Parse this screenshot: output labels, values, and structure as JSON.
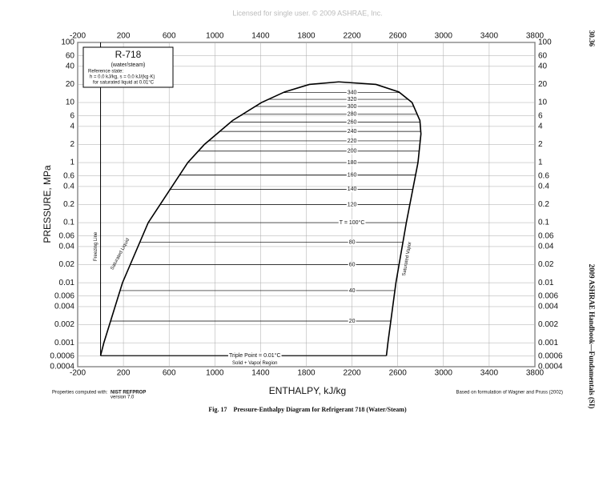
{
  "license": "Licensed for single user. © 2009 ASHRAE, Inc.",
  "page_number": "30.36",
  "running_head": "2009 ASHRAE Handbook—Fundamentals (SI)",
  "caption": "Fig. 17    Pressure-Enthalpy Diagram for Refrigerant 718 (Water/Steam)",
  "chart_data": {
    "type": "line",
    "refrigerant": "R-718",
    "subtitle": "(water/steam)",
    "reference": [
      "Reference state:",
      "h = 0.0 kJ/kg,   s = 0.0 kJ/(kg·K)",
      "for saturated liquid at 0.01°C"
    ],
    "x_label": "ENTHALPY, kJ/kg",
    "y_label": "PRESSURE, MPa",
    "log_y": true,
    "grid": true,
    "xlim": [
      -200,
      3800
    ],
    "ylim": [
      0.0004,
      100
    ],
    "xticks": [
      -200,
      200,
      600,
      1000,
      1400,
      1800,
      2200,
      2600,
      3000,
      3400,
      3800
    ],
    "yticks": [
      100,
      60,
      40,
      20,
      10,
      6,
      4,
      2,
      1,
      0.6,
      0.4,
      0.2,
      0.1,
      0.06,
      0.04,
      0.02,
      0.01,
      0.006,
      0.004,
      0.002,
      0.001,
      0.0006,
      0.0004
    ],
    "series": [
      {
        "name": "Saturated Liquid",
        "color": "#000000",
        "x": [
          0,
          29,
          192,
          417,
          763,
          908,
          1154,
          1408,
          1610,
          1827,
          2084
        ],
        "values": [
          0.000611,
          0.001,
          0.01,
          0.1,
          1,
          2,
          5,
          10,
          15,
          20,
          22.06
        ]
      },
      {
        "name": "Saturated Vapor",
        "color": "#000000",
        "x": [
          2501,
          2514,
          2584,
          2675,
          2777,
          2803,
          2794,
          2725,
          2610,
          2410,
          2084
        ],
        "values": [
          0.000611,
          0.001,
          0.01,
          0.1,
          1,
          3,
          5,
          10,
          15,
          20,
          22.06
        ]
      },
      {
        "name": "Freezing Line",
        "color": "#000000",
        "x": [
          0,
          0
        ],
        "values": [
          0.000611,
          100
        ]
      }
    ],
    "isotherms": {
      "labels": [
        "340",
        "320",
        "300",
        "280",
        "260",
        "240",
        "220",
        "200",
        "180",
        "160",
        "140",
        "120",
        "T = 100°C",
        "80",
        "60",
        "40",
        "20"
      ],
      "values": [
        14.6,
        11.3,
        8.6,
        6.4,
        4.7,
        3.3,
        2.3,
        1.55,
        1.0,
        0.62,
        0.36,
        0.2,
        0.1,
        0.047,
        0.02,
        0.0074,
        0.0023
      ]
    },
    "triple_point": {
      "label": "Triple Point = 0.01°C",
      "value": 0.000611
    },
    "region_label": "Solid + Vapor Region",
    "footer_left": [
      "Properties computed with:",
      "NIST REFPROP",
      "version 7.0"
    ],
    "footer_right": "Based on formulation of Wagner and Pruss (2002)"
  }
}
